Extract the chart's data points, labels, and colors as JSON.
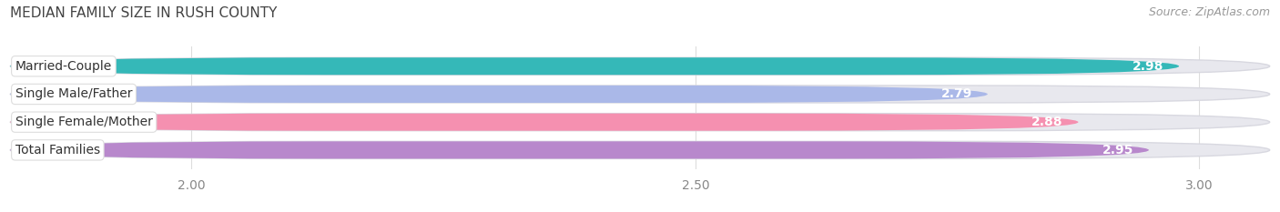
{
  "title": "MEDIAN FAMILY SIZE IN RUSH COUNTY",
  "source": "Source: ZipAtlas.com",
  "categories": [
    "Married-Couple",
    "Single Male/Father",
    "Single Female/Mother",
    "Total Families"
  ],
  "values": [
    2.98,
    2.79,
    2.88,
    2.95
  ],
  "bar_colors": [
    "#35b8b8",
    "#aab8e8",
    "#f590b0",
    "#b888cc"
  ],
  "xlim_min": 1.82,
  "xlim_max": 3.07,
  "xticks": [
    2.0,
    2.5,
    3.0
  ],
  "bar_height": 0.62,
  "track_color": "#e8e8ee",
  "track_edge_color": "#d8d8e0",
  "value_color": "#ffffff",
  "title_color": "#444444",
  "source_color": "#999999",
  "title_fontsize": 11,
  "source_fontsize": 9,
  "tick_fontsize": 10,
  "label_fontsize": 10,
  "value_fontsize": 10,
  "bg_color": "#ffffff"
}
